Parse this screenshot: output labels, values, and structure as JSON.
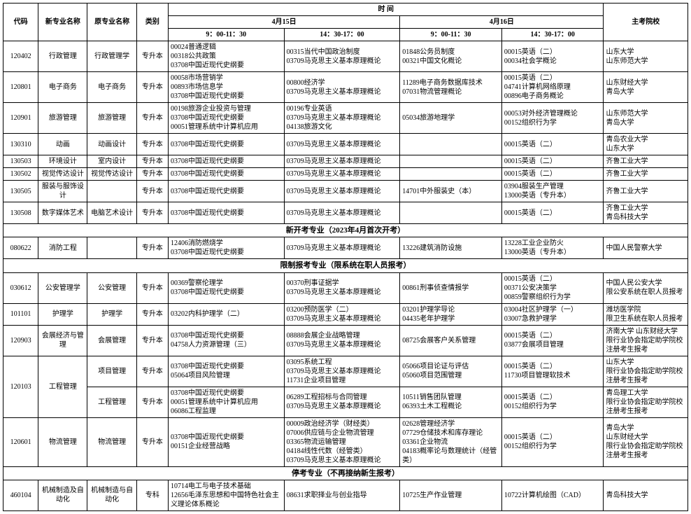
{
  "headers": {
    "code": "代码",
    "newMajor": "新专业名称",
    "origMajor": "原专业名称",
    "type": "类别",
    "timeGroup": "时                                         间",
    "apr15": "4月15日",
    "apr16": "4月16日",
    "morning": "9：00-11：30",
    "afternoon": "14：30-17：00",
    "school": "主考院校"
  },
  "sections": {
    "newStart": "新开考专业（2023年4月首次开考）",
    "restricted": "限制报考专业（限系统在职人员报考）",
    "stopped": "停考专业（不再接纳新生报考）"
  },
  "rows_main": [
    {
      "code": "120402",
      "newMajor": "行政管理",
      "origMajor": "行政管理学",
      "type": "专升本",
      "s1": "00024普通逻辑\n00318公共政策\n03708中国近现代史纲要",
      "s2": "00315当代中国政治制度\n03709马克思主义基本原理概论",
      "s3": "01848公务员制度\n00321中国文化概论",
      "s4": "00015英语（二）\n00034社会学概论",
      "school": "山东大学\n山东师范大学"
    },
    {
      "code": "120801",
      "newMajor": "电子商务",
      "origMajor": "电子商务",
      "type": "专升本",
      "s1": "00058市场营销学\n00893市场信息学\n03708中国近现代史纲要",
      "s2": "00800经济学\n03709马克思主义基本原理概论",
      "s3": "11289电子商务数据库技术\n07031物流管理概论",
      "s4": "00015英语（二）\n04741计算机网络原理\n00896电子商务概论",
      "school": "山东财经大学\n青岛大学"
    },
    {
      "code": "120901",
      "newMajor": "旅游管理",
      "origMajor": "旅游管理",
      "type": "专升本",
      "s1": "00198旅游企业投资与管理\n03708中国近现代史纲要\n00051管理系统中计算机应用",
      "s2": "00196专业英语\n03709马克思主义基本原理概论\n04138旅游文化",
      "s3": "05034旅游地理学",
      "s4": "00053对外经济管理概论\n00152组织行为学",
      "school": "山东师范大学\n青岛大学"
    },
    {
      "code": "130310",
      "newMajor": "动画",
      "origMajor": "动画设计",
      "type": "专升本",
      "s1": "03708中国近现代史纲要",
      "s2": "03709马克思主义基本原理概论",
      "s3": "",
      "s4": "00015英语（二）",
      "school": "青岛农业大学\n山东大学"
    },
    {
      "code": "130503",
      "newMajor": "环境设计",
      "origMajor": "室内设计",
      "type": "专升本",
      "s1": "03708中国近现代史纲要",
      "s2": "03709马克思主义基本原理概论",
      "s3": "",
      "s4": "00015英语（二）",
      "school": "齐鲁工业大学"
    },
    {
      "code": "130502",
      "newMajor": "视觉传达设计",
      "origMajor": "视觉传达设计",
      "type": "专升本",
      "s1": "03708中国近现代史纲要",
      "s2": "03709马克思主义基本原理概论",
      "s3": "",
      "s4": "00015英语（二）",
      "school": "齐鲁工业大学"
    },
    {
      "code": "130505",
      "newMajor": "服装与服饰设计",
      "origMajor": "",
      "type": "专升本",
      "s1": "03708中国近现代史纲要",
      "s2": "03709马克思主义基本原理概论",
      "s3": "14701中外服装史（本）",
      "s4": "03904服装生产管理\n13000英语（专升本）",
      "school": "齐鲁工业大学"
    },
    {
      "code": "130508",
      "newMajor": "数字媒体艺术",
      "origMajor": "电脑艺术设计",
      "type": "专升本",
      "s1": "03708中国近现代史纲要",
      "s2": "03709马克思主义基本原理概论",
      "s3": "",
      "s4": "00015英语（二）",
      "school": "齐鲁工业大学\n青岛科技大学"
    }
  ],
  "rows_newStart": [
    {
      "code": "080622",
      "newMajor": "消防工程",
      "origMajor": "",
      "type": "专升本",
      "s1": "12406消防燃烧学\n03708中国近现代史纲要",
      "s2": "03709马克思主义基本原理概论",
      "s3": "13226建筑消防设施",
      "s4": "13228工业企业防火\n13000英语（专升本）",
      "school": "中国人民警察大学"
    }
  ],
  "rows_restricted_simple": [
    {
      "code": "030612",
      "newMajor": "公安管理学",
      "origMajor": "公安管理",
      "type": "专升本",
      "s1": "00369警察伦理学\n03708中国近现代史纲要",
      "s2": "00370刑事证据学\n03709马克思主义基本原理概论",
      "s3": "00861刑事侦查情报学",
      "s4": "00015英语（二）\n00371公安决策学\n00859警察组织行为学",
      "school": "中国人民公安大学\n限公安系统在职人员报考"
    },
    {
      "code": "101101",
      "newMajor": "护理学",
      "origMajor": "护理学",
      "type": "专升本",
      "s1": "03202内科护理学（二）",
      "s2": "03200预防医学（二）\n03709马克思主义基本原理概论",
      "s3": "03201护理学导论\n04435老年护理学",
      "s4": "03004社区护理学（一）\n03007急救护理学",
      "school": "潍坊医学院\n限卫生系统在职人员报考"
    },
    {
      "code": "120903",
      "newMajor": "会展经济与管理",
      "origMajor": "会展管理",
      "type": "专升本",
      "s1": "03708中国近现代史纲要\n04758人力资源管理（三）",
      "s2": "08888会展企业战略管理\n03709马克思主义基本原理概论",
      "s3": "08725会展客户关系管理",
      "s4": "00015英语（二）\n03877会展项目管理",
      "school": "济南大学 山东财经大学\n限行业协会指定助学院校注册考生报考"
    }
  ],
  "row_120103_1": {
    "newMajor": "工程管理",
    "origMajor": "项目管理",
    "type": "专升本",
    "s1": "03708中国近现代史纲要\n05064项目风险管理",
    "s2": "03095系统工程\n03709马克思主义基本原理概论\n11731企业项目管理",
    "s3": "05066项目论证与评估\n05060项目范围管理",
    "s4": "00015英语（二）\n11730项目管理软技术",
    "school": "山东大学\n限行业协会指定助学院校注册考生报考"
  },
  "row_120103_code": "120103",
  "row_120103_2": {
    "origMajor": "工程管理",
    "type": "专升本",
    "s1": "03708中国近现代史纲要\n00051管理系统中计算机应用\n06086工程监理",
    "s2": "06289工程招标与合同管理\n03709马克思主义基本原理概论",
    "s3": "10511销售团队管理\n06393土木工程概论",
    "s4": "00015英语（二）\n00152组织行为学",
    "school": "青岛理工大学\n限行业协会指定助学院校注册考生报考"
  },
  "row_120601": {
    "code": "120601",
    "newMajor": "物流管理",
    "origMajor": "物流管理",
    "type": "专升本",
    "s1": "03708中国近现代史纲要\n00151企业经营战略",
    "s2": "00009政治经济学（财经类）\n07006供应链与企业物流管理\n03365物流运输管理\n04184线性代数（经管类）\n03709马克思主义基本原理概论",
    "s3": "02628管理经济学\n07729仓储技术和库存理论\n03361企业物流\n04183概率论与数理统计（经管类）",
    "s4": "00015英语（二）\n00152组织行为学",
    "school": "青岛大学\n山东财经大学\n限行业协会指定助学院校注册考生报考"
  },
  "rows_stopped": [
    {
      "code": "460104",
      "newMajor": "机械制造及自动化",
      "origMajor": "机械制造与自动化",
      "type": "专科",
      "s1": "10714电工与电子技术基础\n12656毛泽东思想和中国特色社会主义理论体系概论",
      "s2": "08631求职择业与创业指导",
      "s3": "10725生产作业管理",
      "s4": "10722计算机绘图（CAD）",
      "school": "青岛科技大学"
    }
  ],
  "colWidths": [
    "50",
    "70",
    "70",
    "45",
    "165",
    "165",
    "145",
    "145",
    "120"
  ]
}
